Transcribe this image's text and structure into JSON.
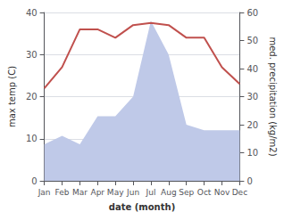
{
  "chart_data": {
    "type": "line",
    "categories": [
      "Jan",
      "Feb",
      "Mar",
      "Apr",
      "May",
      "Jun",
      "Jul",
      "Aug",
      "Sep",
      "Oct",
      "Nov",
      "Dec"
    ],
    "xlabel": "date (month)",
    "ylabel": "max temp (C)",
    "y2label": "med. precipitation (kg/m2)",
    "series": [
      {
        "type": "area",
        "axis": "y2",
        "color": "#bfc9e8",
        "values": [
          13,
          16,
          13,
          23,
          23,
          30,
          57,
          45,
          20,
          18,
          18,
          18
        ]
      },
      {
        "type": "line",
        "color": "#c0504d",
        "values": [
          22,
          27,
          36,
          36,
          34,
          37,
          37.5,
          37,
          34,
          34,
          27,
          23
        ]
      }
    ],
    "ylim": [
      0,
      40
    ],
    "yticks": [
      0,
      10,
      20,
      30,
      40
    ],
    "y2lim": [
      0,
      60
    ],
    "y2ticks": [
      0,
      10,
      20,
      30,
      40,
      50,
      60
    ],
    "grid": true
  }
}
